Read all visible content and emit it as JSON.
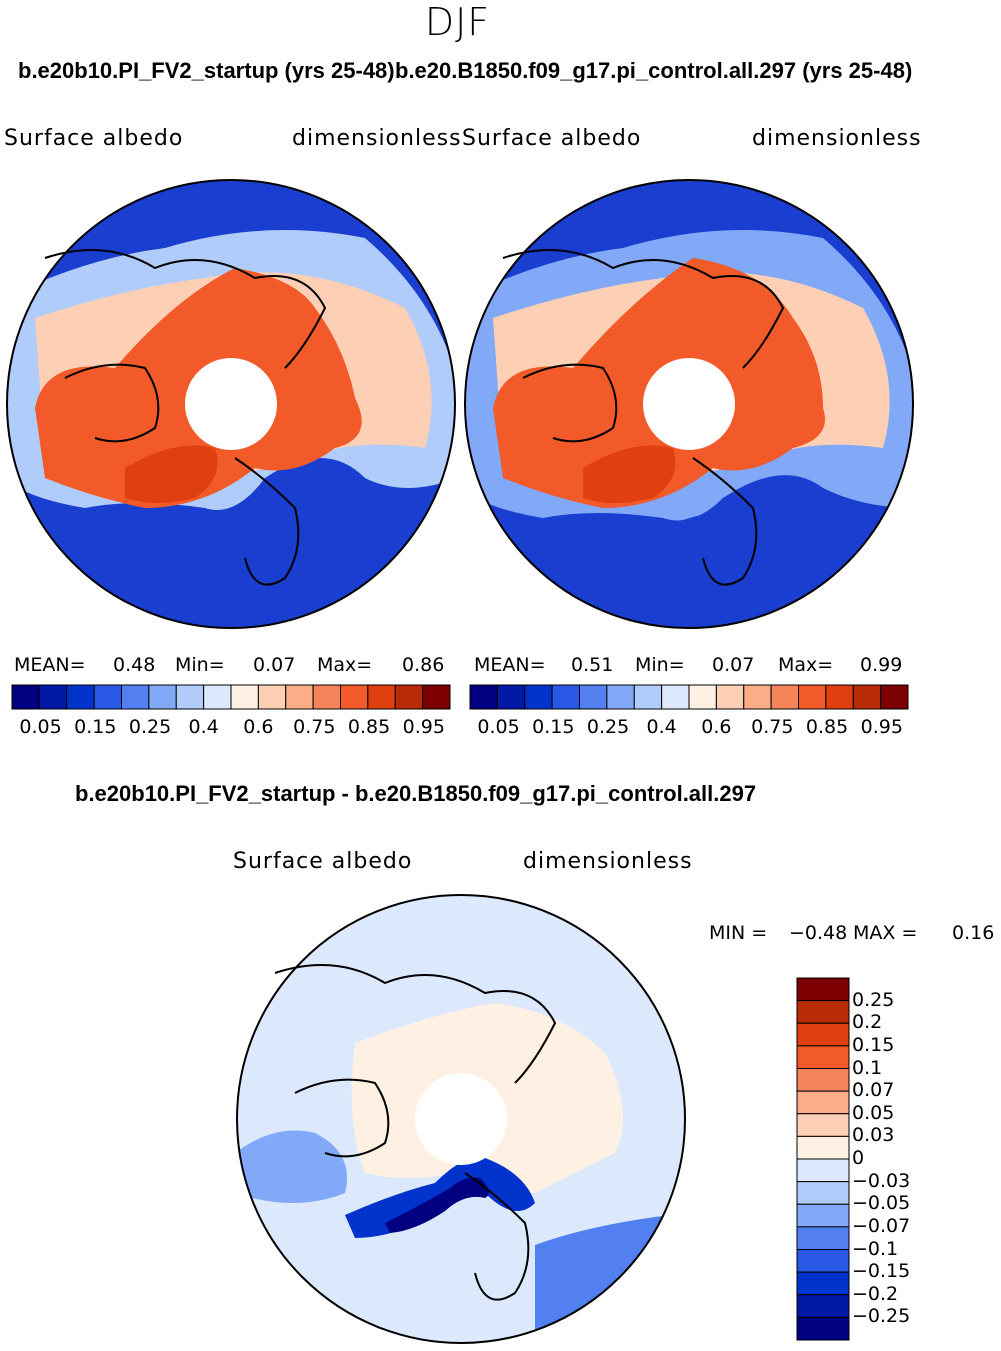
{
  "season": "DJF",
  "panel_left": {
    "case_title": "b.e20b10.PI_FV2_startup (yrs 25-48)",
    "variable": "Surface  albedo",
    "units": "dimensionless",
    "stats": {
      "mean_label": "MEAN=",
      "mean": "0.48",
      "min_label": "Min=",
      "min": "0.07",
      "max_label": "Max=",
      "max": "0.86"
    }
  },
  "panel_right": {
    "case_title": "b.e20.B1850.f09_g17.pi_control.all.297 (yrs 25-48)",
    "variable": "Surface  albedo",
    "units": "dimensionless",
    "stats": {
      "mean_label": "MEAN=",
      "mean": "0.51",
      "min_label": "Min=",
      "min": "0.07",
      "max_label": "Max=",
      "max": "0.99"
    }
  },
  "abs_colorbar": {
    "colors": [
      "#000080",
      "#0019a5",
      "#0033cc",
      "#2958e6",
      "#5280f0",
      "#82a8f8",
      "#b0ccfa",
      "#dce9fc",
      "#fff0e4",
      "#fdd0b5",
      "#fbad88",
      "#f5845b",
      "#f25a2a",
      "#e04010",
      "#b82a08",
      "#7d0000"
    ],
    "tick_labels": [
      "0.05",
      "0.15",
      "0.25",
      "0.4",
      "0.6",
      "0.75",
      "0.85",
      "0.95"
    ]
  },
  "diff_panel": {
    "title": "b.e20b10.PI_FV2_startup - b.e20.B1850.f09_g17.pi_control.all.297",
    "variable": "Surface  albedo",
    "units": "dimensionless",
    "min_label": "MIN =",
    "min": "−0.48",
    "max_label": "MAX =",
    "max": "0.16"
  },
  "diff_colorbar": {
    "colors": [
      "#7d0000",
      "#b82a08",
      "#e04010",
      "#f25a2a",
      "#f5845b",
      "#fbad88",
      "#fdd0b5",
      "#fff0e4",
      "#dce9fc",
      "#b0ccfa",
      "#82a8f8",
      "#5280f0",
      "#2958e6",
      "#0033cc",
      "#0019a5",
      "#000080"
    ],
    "tick_labels": [
      "0.25",
      "0.2",
      "0.15",
      "0.1",
      "0.07",
      "0.05",
      "0.03",
      "0",
      "−0.03",
      "−0.05",
      "−0.07",
      "−0.1",
      "−0.15",
      "−0.2",
      "−0.25"
    ]
  }
}
